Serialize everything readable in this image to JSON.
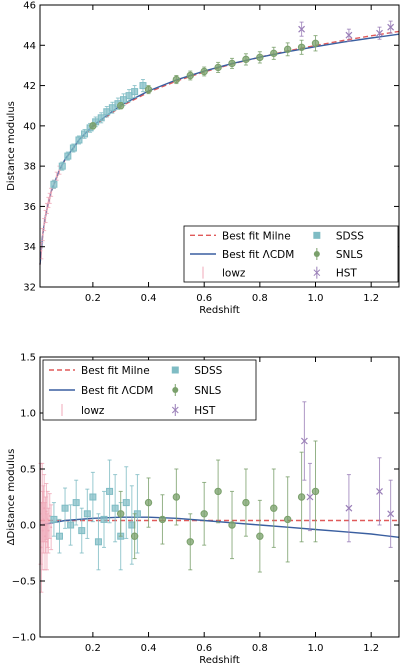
{
  "chart_data": [
    {
      "type": "scatter",
      "xlabel": "Redshift",
      "ylabel": "Distance modulus",
      "xlim": [
        0.01,
        1.3
      ],
      "ylim": [
        32,
        46
      ],
      "xticks": [
        0.2,
        0.4,
        0.6,
        0.8,
        1.0,
        1.2
      ],
      "xtick_labels": [
        "0.2",
        "0.4",
        "0.6",
        "0.8",
        "1.0",
        "1.2"
      ],
      "yticks": [
        32,
        34,
        36,
        38,
        40,
        42,
        44,
        46
      ],
      "ytick_labels": [
        "32",
        "34",
        "36",
        "38",
        "40",
        "42",
        "44",
        "46"
      ],
      "legend_position": "lower-right",
      "legend": [
        {
          "label": "Best fit Milne",
          "marker": "dashed-line",
          "color": "#e05a5a"
        },
        {
          "label": "SDSS",
          "marker": "square",
          "color": "#7fbcc4"
        },
        {
          "label": "Best fit ΛCDM",
          "marker": "solid-line",
          "color": "#3a5fa0"
        },
        {
          "label": "SNLS",
          "marker": "circle",
          "color": "#7aa06b"
        },
        {
          "label": "lowz",
          "marker": "errorbar",
          "color": "#f0a8b8"
        },
        {
          "label": "HST",
          "marker": "x",
          "color": "#9a7fb8"
        }
      ],
      "series": [
        {
          "name": "Best fit Milne",
          "style": "line",
          "x": [
            0.01,
            0.02,
            0.03,
            0.05,
            0.08,
            0.1,
            0.15,
            0.2,
            0.3,
            0.4,
            0.5,
            0.6,
            0.7,
            0.8,
            0.9,
            1.0,
            1.1,
            1.2,
            1.3
          ],
          "y": [
            33.1,
            34.65,
            35.56,
            36.72,
            37.79,
            38.31,
            39.27,
            39.96,
            40.96,
            41.67,
            42.22,
            42.68,
            43.07,
            43.41,
            43.72,
            43.99,
            44.24,
            44.47,
            44.69
          ]
        },
        {
          "name": "Best fit ΛCDM",
          "style": "line",
          "x": [
            0.01,
            0.02,
            0.03,
            0.05,
            0.08,
            0.1,
            0.15,
            0.2,
            0.3,
            0.4,
            0.5,
            0.6,
            0.7,
            0.8,
            0.9,
            1.0,
            1.1,
            1.2,
            1.3
          ],
          "y": [
            33.12,
            34.66,
            35.57,
            36.74,
            37.82,
            38.34,
            39.31,
            40.01,
            41.02,
            41.73,
            42.28,
            42.72,
            43.09,
            43.41,
            43.68,
            43.93,
            44.16,
            44.36,
            44.55
          ]
        },
        {
          "name": "lowz",
          "style": "errorbar",
          "x": [
            0.015,
            0.02,
            0.025,
            0.03,
            0.035,
            0.04,
            0.045,
            0.05,
            0.06,
            0.07,
            0.08
          ],
          "y": [
            33.8,
            34.6,
            35.1,
            35.5,
            35.9,
            36.2,
            36.4,
            36.7,
            37.1,
            37.5,
            37.8
          ],
          "err": [
            0.4,
            0.3,
            0.3,
            0.3,
            0.25,
            0.25,
            0.25,
            0.2,
            0.2,
            0.2,
            0.2
          ]
        },
        {
          "name": "SDSS",
          "style": "points",
          "x": [
            0.06,
            0.09,
            0.11,
            0.13,
            0.15,
            0.17,
            0.19,
            0.21,
            0.23,
            0.25,
            0.27,
            0.29,
            0.31,
            0.33,
            0.35,
            0.38
          ],
          "y": [
            37.1,
            38.0,
            38.5,
            38.9,
            39.3,
            39.6,
            39.9,
            40.2,
            40.4,
            40.7,
            40.9,
            41.1,
            41.3,
            41.5,
            41.7,
            42.0
          ],
          "err": [
            0.2,
            0.2,
            0.2,
            0.2,
            0.2,
            0.22,
            0.22,
            0.24,
            0.25,
            0.26,
            0.27,
            0.28,
            0.29,
            0.3,
            0.3,
            0.3
          ]
        },
        {
          "name": "SNLS",
          "style": "points",
          "x": [
            0.2,
            0.3,
            0.4,
            0.5,
            0.55,
            0.6,
            0.65,
            0.7,
            0.75,
            0.8,
            0.85,
            0.9,
            0.95,
            1.0
          ],
          "y": [
            40.0,
            41.0,
            41.8,
            42.3,
            42.5,
            42.7,
            42.9,
            43.1,
            43.3,
            43.4,
            43.6,
            43.8,
            43.9,
            44.1
          ],
          "err": [
            0.15,
            0.15,
            0.2,
            0.2,
            0.22,
            0.22,
            0.25,
            0.25,
            0.28,
            0.28,
            0.3,
            0.32,
            0.35,
            0.38
          ]
        },
        {
          "name": "HST",
          "style": "x",
          "x": [
            0.95,
            1.12,
            1.23,
            1.27
          ],
          "y": [
            44.8,
            44.5,
            44.6,
            44.9
          ],
          "err": [
            0.35,
            0.3,
            0.3,
            0.3
          ]
        }
      ]
    },
    {
      "type": "scatter",
      "xlabel": "Redshift",
      "ylabel": "ΔDistance modulus",
      "xlim": [
        0.01,
        1.3
      ],
      "ylim": [
        -1.0,
        1.5
      ],
      "xticks": [
        0.2,
        0.4,
        0.6,
        0.8,
        1.0,
        1.2
      ],
      "xtick_labels": [
        "0.2",
        "0.4",
        "0.6",
        "0.8",
        "1.0",
        "1.2"
      ],
      "yticks": [
        -1.0,
        -0.5,
        0.0,
        0.5,
        1.0,
        1.5
      ],
      "ytick_labels": [
        "−1.0",
        "−0.5",
        "0.0",
        "0.5",
        "1.0",
        "1.5"
      ],
      "legend_position": "upper-left",
      "legend": [
        {
          "label": "Best fit Milne",
          "marker": "dashed-line",
          "color": "#e05a5a"
        },
        {
          "label": "SDSS",
          "marker": "square",
          "color": "#7fbcc4"
        },
        {
          "label": "Best fit ΛCDM",
          "marker": "solid-line",
          "color": "#3a5fa0"
        },
        {
          "label": "SNLS",
          "marker": "circle",
          "color": "#7aa06b"
        },
        {
          "label": "lowz",
          "marker": "errorbar",
          "color": "#f0a8b8"
        },
        {
          "label": "HST",
          "marker": "x",
          "color": "#9a7fb8"
        }
      ],
      "series": [
        {
          "name": "Best fit Milne",
          "style": "line",
          "x": [
            0.01,
            1.3
          ],
          "y": [
            0.04,
            0.04
          ]
        },
        {
          "name": "Best fit ΛCDM",
          "style": "line",
          "x": [
            0.01,
            0.1,
            0.2,
            0.3,
            0.4,
            0.5,
            0.6,
            0.7,
            0.8,
            0.9,
            1.0,
            1.1,
            1.2,
            1.3
          ],
          "y": [
            0.0,
            0.04,
            0.06,
            0.07,
            0.07,
            0.06,
            0.04,
            0.02,
            0.0,
            -0.02,
            -0.04,
            -0.06,
            -0.08,
            -0.11
          ]
        },
        {
          "name": "lowz",
          "style": "errorbar",
          "x": [
            0.012,
            0.015,
            0.018,
            0.02,
            0.022,
            0.025,
            0.028,
            0.03,
            0.033,
            0.035,
            0.038,
            0.04,
            0.045,
            0.05
          ],
          "y": [
            0.1,
            -0.2,
            0.2,
            -0.05,
            0.05,
            0.15,
            -0.1,
            0.0,
            0.12,
            -0.15,
            0.05,
            -0.05,
            0.08,
            -0.02
          ],
          "err": [
            0.45,
            0.4,
            0.35,
            0.35,
            0.3,
            0.3,
            0.3,
            0.25,
            0.25,
            0.25,
            0.25,
            0.2,
            0.2,
            0.2
          ]
        },
        {
          "name": "SDSS",
          "style": "points",
          "x": [
            0.06,
            0.08,
            0.1,
            0.12,
            0.14,
            0.16,
            0.18,
            0.2,
            0.22,
            0.24,
            0.26,
            0.28,
            0.3,
            0.32,
            0.34,
            0.36
          ],
          "y": [
            0.05,
            -0.1,
            0.15,
            0.0,
            0.2,
            -0.05,
            0.1,
            0.25,
            -0.15,
            0.05,
            0.3,
            0.15,
            -0.1,
            0.2,
            0.0,
            0.1
          ],
          "err": [
            0.15,
            0.15,
            0.18,
            0.18,
            0.2,
            0.2,
            0.22,
            0.22,
            0.25,
            0.25,
            0.28,
            0.3,
            0.3,
            0.32,
            0.35,
            0.35
          ]
        },
        {
          "name": "SNLS",
          "style": "points",
          "x": [
            0.3,
            0.35,
            0.4,
            0.45,
            0.5,
            0.55,
            0.6,
            0.65,
            0.7,
            0.75,
            0.8,
            0.85,
            0.9,
            0.95,
            1.0
          ],
          "y": [
            0.1,
            -0.1,
            0.2,
            0.05,
            0.25,
            -0.15,
            0.1,
            0.3,
            0.0,
            0.2,
            -0.1,
            0.15,
            0.05,
            0.25,
            0.3
          ],
          "err": [
            0.2,
            0.2,
            0.22,
            0.22,
            0.25,
            0.25,
            0.28,
            0.28,
            0.3,
            0.3,
            0.32,
            0.35,
            0.38,
            0.4,
            0.45
          ]
        },
        {
          "name": "HST",
          "style": "x",
          "x": [
            0.96,
            0.98,
            1.12,
            1.23,
            1.27
          ],
          "y": [
            0.75,
            0.25,
            0.15,
            0.3,
            0.1
          ],
          "err": [
            0.35,
            0.3,
            0.3,
            0.3,
            0.3
          ]
        }
      ]
    }
  ]
}
